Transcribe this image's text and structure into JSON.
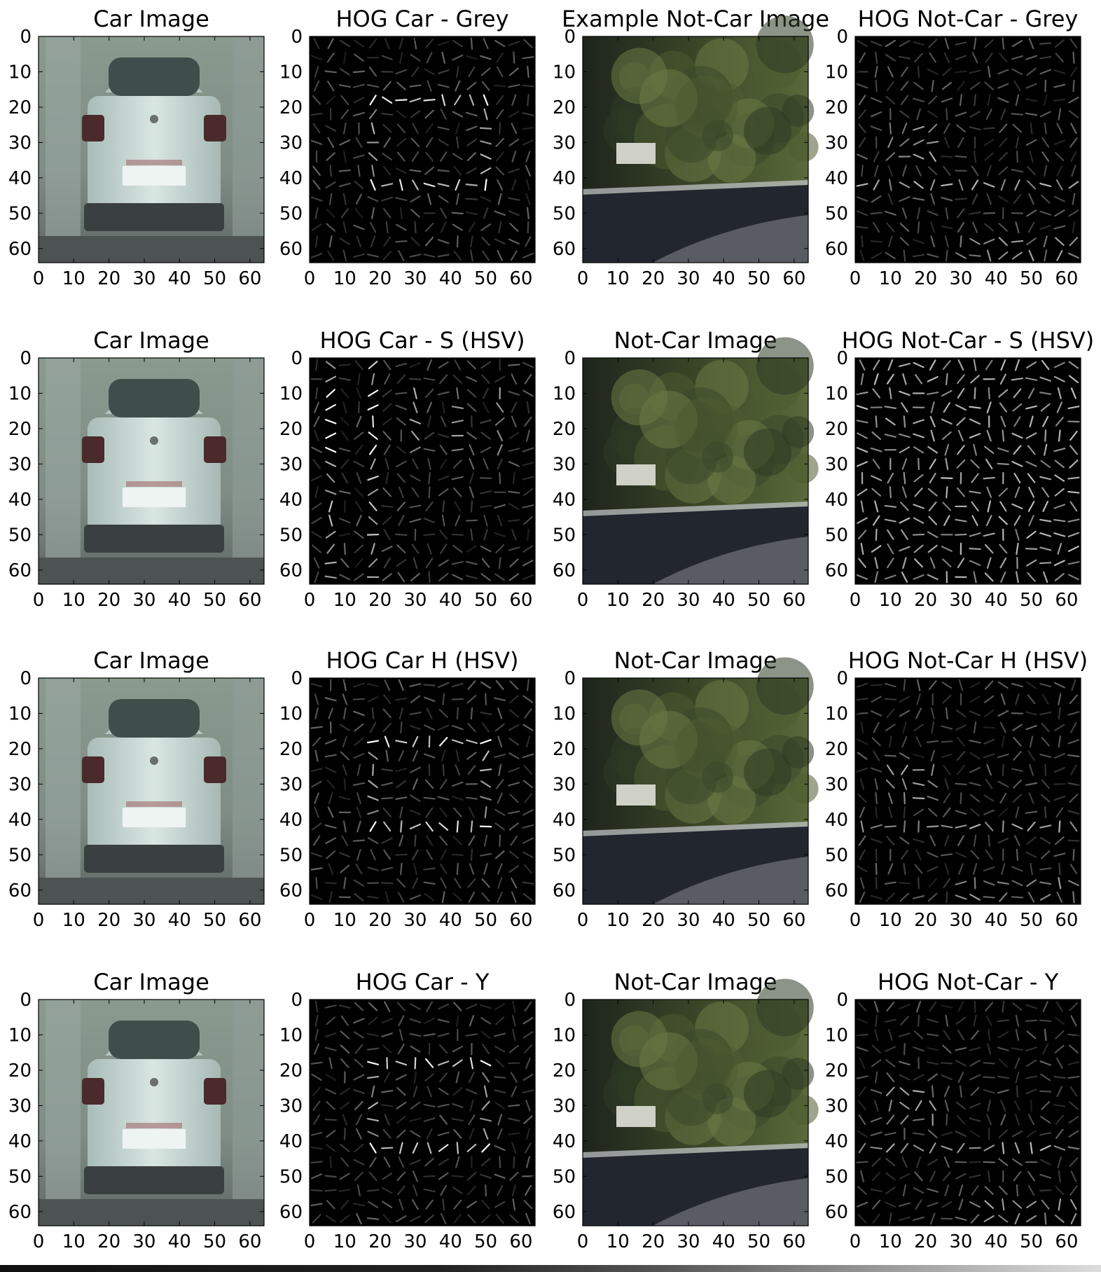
{
  "chart_data": [
    {
      "panel": 1,
      "type": "image",
      "title": "Car Image",
      "content": "car",
      "xticks": [
        "0",
        "10",
        "20",
        "30",
        "40",
        "50",
        "60"
      ],
      "yticks": [
        "0",
        "10",
        "20",
        "30",
        "40",
        "50",
        "60"
      ],
      "xlim": [
        0,
        64
      ],
      "ylim": [
        64,
        0
      ]
    },
    {
      "panel": 2,
      "type": "image",
      "title": "HOG Car - Grey",
      "content": "hog_car",
      "xticks": [
        "0",
        "10",
        "20",
        "30",
        "40",
        "50",
        "60"
      ],
      "yticks": [
        "0",
        "10",
        "20",
        "30",
        "40",
        "50",
        "60"
      ],
      "xlim": [
        0,
        64
      ],
      "ylim": [
        64,
        0
      ]
    },
    {
      "panel": 3,
      "type": "image",
      "title": "Example Not-Car Image",
      "content": "notcar",
      "xticks": [
        "0",
        "10",
        "20",
        "30",
        "40",
        "50",
        "60"
      ],
      "yticks": [
        "0",
        "10",
        "20",
        "30",
        "40",
        "50",
        "60"
      ],
      "xlim": [
        0,
        64
      ],
      "ylim": [
        64,
        0
      ]
    },
    {
      "panel": 4,
      "type": "image",
      "title": "HOG Not-Car - Grey",
      "content": "hog_notcar",
      "xticks": [
        "0",
        "10",
        "20",
        "30",
        "40",
        "50",
        "60"
      ],
      "yticks": [
        "0",
        "10",
        "20",
        "30",
        "40",
        "50",
        "60"
      ],
      "xlim": [
        0,
        64
      ],
      "ylim": [
        64,
        0
      ]
    },
    {
      "panel": 5,
      "type": "image",
      "title": "Car Image",
      "content": "car",
      "xticks": [
        "0",
        "10",
        "20",
        "30",
        "40",
        "50",
        "60"
      ],
      "yticks": [
        "0",
        "10",
        "20",
        "30",
        "40",
        "50",
        "60"
      ],
      "xlim": [
        0,
        64
      ],
      "ylim": [
        64,
        0
      ]
    },
    {
      "panel": 6,
      "type": "image",
      "title": "HOG Car - S (HSV)",
      "content": "hog_car_s",
      "xticks": [
        "0",
        "10",
        "20",
        "30",
        "40",
        "50",
        "60"
      ],
      "yticks": [
        "0",
        "10",
        "20",
        "30",
        "40",
        "50",
        "60"
      ],
      "xlim": [
        0,
        64
      ],
      "ylim": [
        64,
        0
      ]
    },
    {
      "panel": 7,
      "type": "image",
      "title": "Not-Car Image",
      "content": "notcar",
      "xticks": [
        "0",
        "10",
        "20",
        "30",
        "40",
        "50",
        "60"
      ],
      "yticks": [
        "0",
        "10",
        "20",
        "30",
        "40",
        "50",
        "60"
      ],
      "xlim": [
        0,
        64
      ],
      "ylim": [
        64,
        0
      ]
    },
    {
      "panel": 8,
      "type": "image",
      "title": "HOG Not-Car - S (HSV)",
      "content": "hog_notcar_s",
      "xticks": [
        "0",
        "10",
        "20",
        "30",
        "40",
        "50",
        "60"
      ],
      "yticks": [
        "0",
        "10",
        "20",
        "30",
        "40",
        "50",
        "60"
      ],
      "xlim": [
        0,
        64
      ],
      "ylim": [
        64,
        0
      ]
    },
    {
      "panel": 9,
      "type": "image",
      "title": "Car Image",
      "content": "car",
      "xticks": [
        "0",
        "10",
        "20",
        "30",
        "40",
        "50",
        "60"
      ],
      "yticks": [
        "0",
        "10",
        "20",
        "30",
        "40",
        "50",
        "60"
      ],
      "xlim": [
        0,
        64
      ],
      "ylim": [
        64,
        0
      ]
    },
    {
      "panel": 10,
      "type": "image",
      "title": "HOG Car H (HSV)",
      "content": "hog_car",
      "xticks": [
        "0",
        "10",
        "20",
        "30",
        "40",
        "50",
        "60"
      ],
      "yticks": [
        "0",
        "10",
        "20",
        "30",
        "40",
        "50",
        "60"
      ],
      "xlim": [
        0,
        64
      ],
      "ylim": [
        64,
        0
      ]
    },
    {
      "panel": 11,
      "type": "image",
      "title": "Not-Car Image",
      "content": "notcar",
      "xticks": [
        "0",
        "10",
        "20",
        "30",
        "40",
        "50",
        "60"
      ],
      "yticks": [
        "0",
        "10",
        "20",
        "30",
        "40",
        "50",
        "60"
      ],
      "xlim": [
        0,
        64
      ],
      "ylim": [
        64,
        0
      ]
    },
    {
      "panel": 12,
      "type": "image",
      "title": "HOG Not-Car H (HSV)",
      "content": "hog_notcar",
      "xticks": [
        "0",
        "10",
        "20",
        "30",
        "40",
        "50",
        "60"
      ],
      "yticks": [
        "0",
        "10",
        "20",
        "30",
        "40",
        "50",
        "60"
      ],
      "xlim": [
        0,
        64
      ],
      "ylim": [
        64,
        0
      ]
    },
    {
      "panel": 13,
      "type": "image",
      "title": "Car Image",
      "content": "car",
      "xticks": [
        "0",
        "10",
        "20",
        "30",
        "40",
        "50",
        "60"
      ],
      "yticks": [
        "0",
        "10",
        "20",
        "30",
        "40",
        "50",
        "60"
      ],
      "xlim": [
        0,
        64
      ],
      "ylim": [
        64,
        0
      ]
    },
    {
      "panel": 14,
      "type": "image",
      "title": "HOG Car - Y",
      "content": "hog_car",
      "xticks": [
        "0",
        "10",
        "20",
        "30",
        "40",
        "50",
        "60"
      ],
      "yticks": [
        "0",
        "10",
        "20",
        "30",
        "40",
        "50",
        "60"
      ],
      "xlim": [
        0,
        64
      ],
      "ylim": [
        64,
        0
      ]
    },
    {
      "panel": 15,
      "type": "image",
      "title": "Not-Car Image",
      "content": "notcar",
      "xticks": [
        "0",
        "10",
        "20",
        "30",
        "40",
        "50",
        "60"
      ],
      "yticks": [
        "0",
        "10",
        "20",
        "30",
        "40",
        "50",
        "60"
      ],
      "xlim": [
        0,
        64
      ],
      "ylim": [
        64,
        0
      ]
    },
    {
      "panel": 16,
      "type": "image",
      "title": "HOG Not-Car - Y",
      "content": "hog_notcar",
      "xticks": [
        "0",
        "10",
        "20",
        "30",
        "40",
        "50",
        "60"
      ],
      "yticks": [
        "0",
        "10",
        "20",
        "30",
        "40",
        "50",
        "60"
      ],
      "xlim": [
        0,
        64
      ],
      "ylim": [
        64,
        0
      ]
    }
  ]
}
